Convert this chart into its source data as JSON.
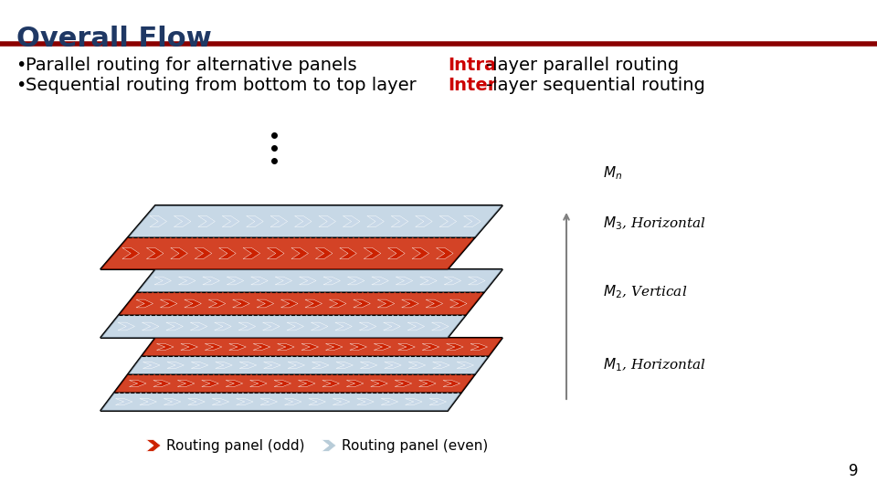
{
  "title": "Overall Flow",
  "title_color": "#1F3864",
  "divider_color": "#8B0000",
  "bullet1_plain": "Parallel routing for alternative panels",
  "bullet1_bold_prefix": "Intra",
  "bullet1_bold_suffix": "-layer parallel routing",
  "bullet2_plain": "Sequential routing from bottom to top layer ",
  "bullet2_bold_prefix": "Inter",
  "bullet2_bold_suffix": "-layer sequential routing",
  "label_mn": "$M_n$",
  "label_m3": "$M_3$, Horizontal",
  "label_m2": "$M_2$, Vertical",
  "label_m1": "$M_1$, Horizontal",
  "legend_odd": "Routing panel (odd)",
  "legend_even": "Routing panel (even)",
  "red_color": "#CC0000",
  "blue_color": "#a0b4c8",
  "dark_color": "#1F3864",
  "page_num": "9",
  "background": "#ffffff"
}
